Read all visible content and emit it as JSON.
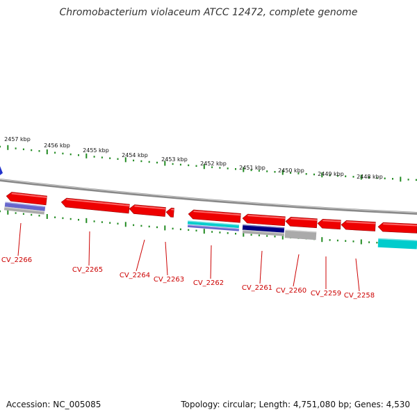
{
  "title": "Chromobacterium violaceum ATCC 12472, complete genome",
  "footer": {
    "accession": "Accession: NC_005085",
    "topology": "Topology: circular; Length: 4,751,080 bp; Genes: 4,530"
  },
  "ruler_labels": [
    "2457 kbp",
    "2456 kbp",
    "2455 kbp",
    "2454 kbp",
    "2453 kbp",
    "2452 kbp",
    "2451 kbp",
    "2450 kbp",
    "2449 kbp",
    "2448 kbp"
  ],
  "gene_labels": [
    "CV_2266",
    "CV_2265",
    "CV_2264",
    "CV_2263",
    "CV_2262",
    "CV_2261",
    "CV_2260",
    "CV_2259",
    "CV_2258"
  ],
  "colors": {
    "cds": "#ee0000",
    "backbone": "#888888",
    "tick": "#228b22",
    "label": "#cc0000",
    "cyan_feature": "#00cccc",
    "navy_feature": "#000080",
    "blue_feature": "#6666cc",
    "grey_feature": "#aaaaaa"
  }
}
